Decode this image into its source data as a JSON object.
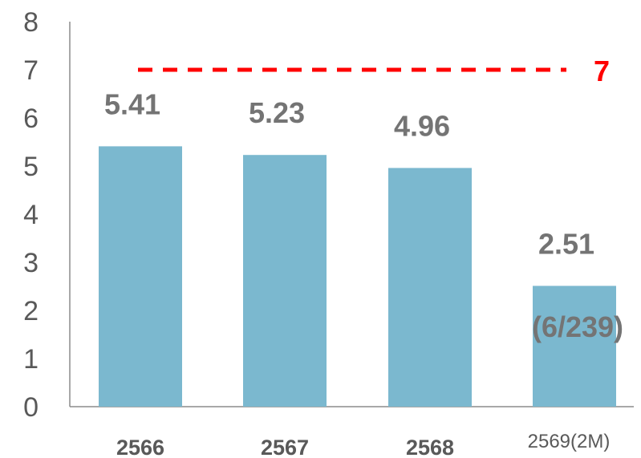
{
  "chart_data": {
    "type": "bar",
    "categories": [
      "2566",
      "2567",
      "2568",
      "2569(2M)"
    ],
    "category_bold": [
      true,
      true,
      true,
      false
    ],
    "values": [
      5.41,
      5.23,
      4.96,
      2.51
    ],
    "value_labels": [
      "5.41",
      "5.23",
      "4.96",
      "2.51"
    ],
    "extra_labels": [
      "",
      "",
      "",
      "(6/239)"
    ],
    "ylim": [
      0,
      8
    ],
    "yticks": [
      0,
      1,
      2,
      3,
      4,
      5,
      6,
      7,
      8
    ],
    "target": {
      "value": 7,
      "label": "7",
      "color": "#ff0000",
      "style": "dashed"
    },
    "bar_color": "#7bb8cf",
    "label_color": "#747474",
    "axis_color": "#8c8c8c",
    "grid": false,
    "legend": "none",
    "title": "",
    "xlabel": "",
    "ylabel": ""
  }
}
